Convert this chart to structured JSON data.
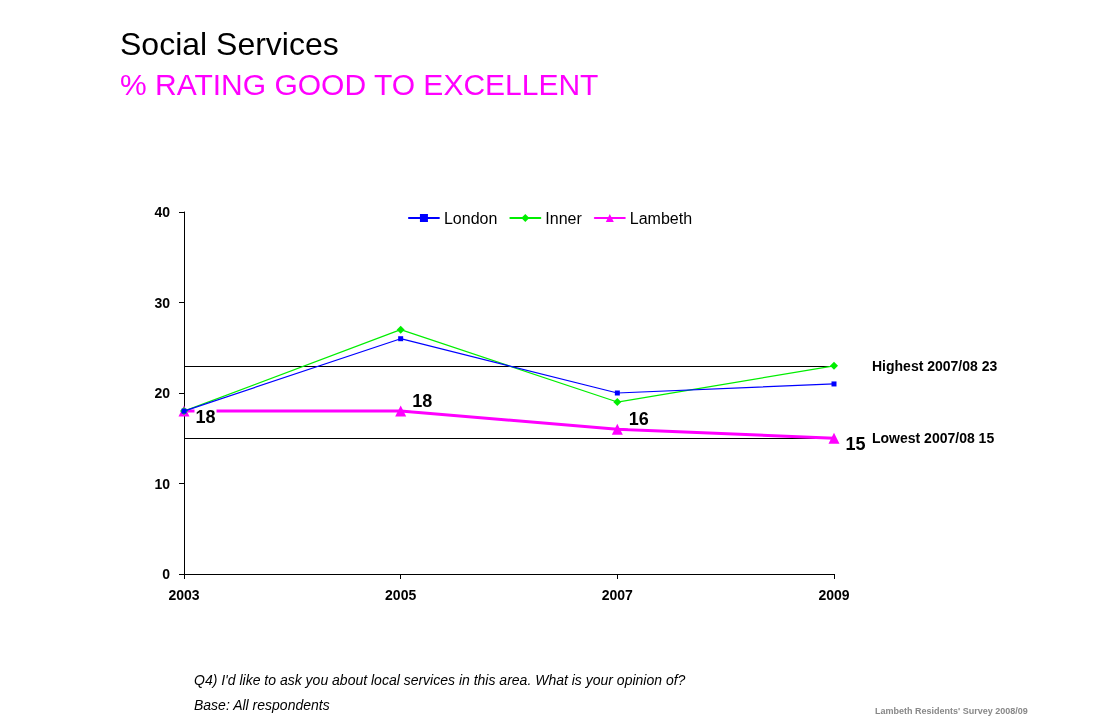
{
  "chart_data": {
    "type": "line",
    "title": "Social Services",
    "subtitle": "% RATING GOOD TO EXCELLENT",
    "categories": [
      "2003",
      "2005",
      "2007",
      "2009"
    ],
    "series": [
      {
        "name": "London",
        "color": "#0000ff",
        "marker": "square",
        "values": [
          18,
          26,
          20,
          21
        ]
      },
      {
        "name": "Inner",
        "color": "#00ee00",
        "marker": "diamond",
        "values": [
          18,
          27,
          19,
          23
        ]
      },
      {
        "name": "Lambeth",
        "color": "#ff00ff",
        "marker": "triangle",
        "values": [
          18,
          18,
          16,
          15
        ],
        "value_labels": [
          "18",
          "18",
          "16",
          "15"
        ]
      }
    ],
    "ylim": [
      0,
      40
    ],
    "yticks": [
      0,
      10,
      20,
      30,
      40
    ],
    "grid": false,
    "legend": "top",
    "ref_lines": [
      {
        "axis": "y",
        "value": 23,
        "label": "Highest 2007/08 23",
        "color": "#000000"
      },
      {
        "axis": "y",
        "value": 15,
        "label": "Lowest 2007/08 15",
        "color": "#000000"
      }
    ],
    "annotations": [
      "Q4) I'd like to ask you about local services in this area. What is your opinion of?",
      "Base: All respondents",
      "Lambeth Residents' Survey 2008/09"
    ]
  }
}
